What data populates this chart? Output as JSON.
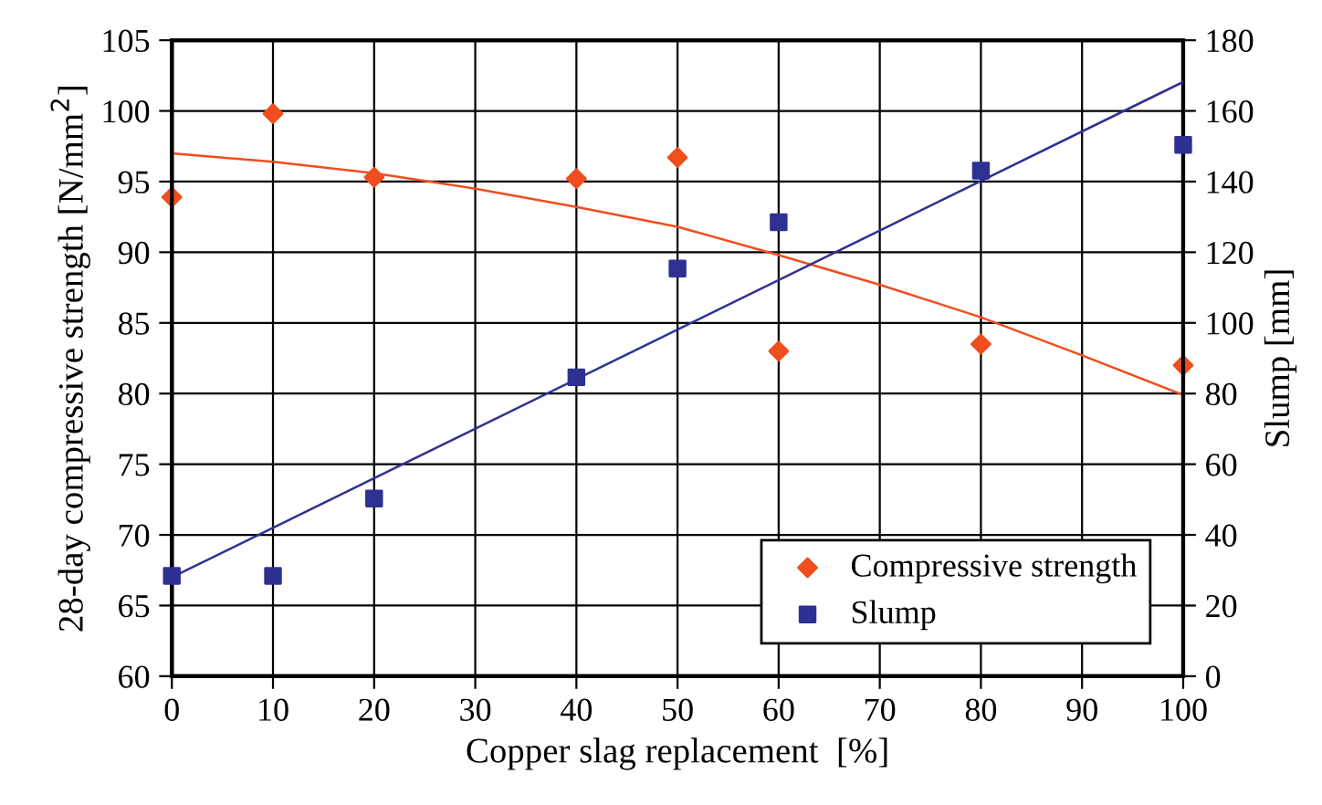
{
  "chart_data": {
    "type": "scatter",
    "xlabel": "Copper slag replacement  [%]",
    "ylabel": "28-day compressive strength [N/mm$^{2}$]",
    "y2label": "Slump [mm]",
    "x": [
      0,
      10,
      20,
      40,
      50,
      60,
      80,
      100
    ],
    "series": [
      {
        "name": "Compressive strength",
        "color": "#f04e1e",
        "marker": "diamond",
        "values": [
          93.9,
          99.8,
          95.3,
          95.2,
          96.7,
          83.0,
          83.5,
          82.0
        ]
      },
      {
        "name": "Slump",
        "color": "#2e3192",
        "marker": "square",
        "axis": "y2",
        "values": [
          28.4,
          28.4,
          50.3,
          84.6,
          115.4,
          128.5,
          143.1,
          150.4
        ]
      },
      {
        "type": "line",
        "color": "#f04e1e",
        "x": [
          0,
          10,
          20,
          30,
          40,
          50,
          60,
          70,
          80,
          90,
          100
        ],
        "values": [
          97.0,
          96.4,
          95.6,
          94.5,
          93.2,
          91.8,
          89.8,
          87.7,
          85.4,
          82.7,
          79.9
        ]
      },
      {
        "type": "line",
        "color": "#2e3192",
        "axis": "y2",
        "x": [
          0,
          100
        ],
        "values": [
          28.0,
          168.2
        ]
      }
    ],
    "xlim": [
      0,
      100
    ],
    "xticks": [
      0,
      10,
      20,
      30,
      40,
      50,
      60,
      70,
      80,
      90,
      100
    ],
    "ylim": [
      60,
      105
    ],
    "yticks": [
      60,
      65,
      70,
      75,
      80,
      85,
      90,
      95,
      100,
      105
    ],
    "y2lim": [
      0,
      180
    ],
    "y2ticks": [
      0,
      20,
      40,
      60,
      80,
      100,
      120,
      140,
      160,
      180
    ],
    "grid": true,
    "legend": "bottom right"
  }
}
